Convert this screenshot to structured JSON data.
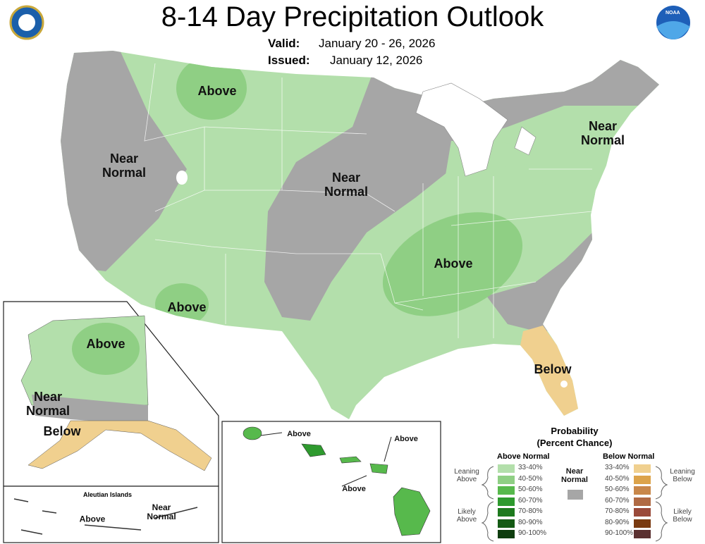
{
  "header": {
    "title": "8-14 Day Precipitation Outlook",
    "valid_label": "Valid:",
    "valid": "January 20 - 26, 2026",
    "issued_label": "Issued:",
    "issued": "January 12, 2026",
    "logo_text": "NOAA"
  },
  "map": {
    "conus_labels": [
      "Above",
      "Near Normal",
      "Near Normal",
      "Near Normal",
      "Above",
      "Above",
      "Below"
    ],
    "alaska_labels": [
      "Above",
      "Near Normal",
      "Below"
    ],
    "aleutian_title": "Aleutian Islands",
    "aleutian_labels": [
      "Above",
      "Near Normal"
    ],
    "hawaii_labels": [
      "Above",
      "Above",
      "Above"
    ]
  },
  "legend": {
    "title": "Probability",
    "subtitle": "(Percent Chance)",
    "above_header": "Above Normal",
    "below_header": "Below Normal",
    "near": "Near Normal",
    "near_color": "#a6a6a6",
    "leaning_above": "Leaning Above",
    "likely_above": "Likely Above",
    "leaning_below": "Leaning Below",
    "likely_below": "Likely Below",
    "above": [
      {
        "label": "33-40%",
        "color": "#b3dfab"
      },
      {
        "label": "40-50%",
        "color": "#8fcf84"
      },
      {
        "label": "50-60%",
        "color": "#57b94c"
      },
      {
        "label": "60-70%",
        "color": "#2e9a2e"
      },
      {
        "label": "70-80%",
        "color": "#1e7a1e"
      },
      {
        "label": "80-90%",
        "color": "#145a14"
      },
      {
        "label": "90-100%",
        "color": "#0e3d0e"
      }
    ],
    "below": [
      {
        "label": "33-40%",
        "color": "#f0d08f"
      },
      {
        "label": "40-50%",
        "color": "#dca34a"
      },
      {
        "label": "50-60%",
        "color": "#c8874a"
      },
      {
        "label": "60-70%",
        "color": "#b06a44"
      },
      {
        "label": "70-80%",
        "color": "#9a4a3a"
      },
      {
        "label": "80-90%",
        "color": "#7a3a10"
      },
      {
        "label": "90-100%",
        "color": "#5a3030"
      }
    ]
  }
}
